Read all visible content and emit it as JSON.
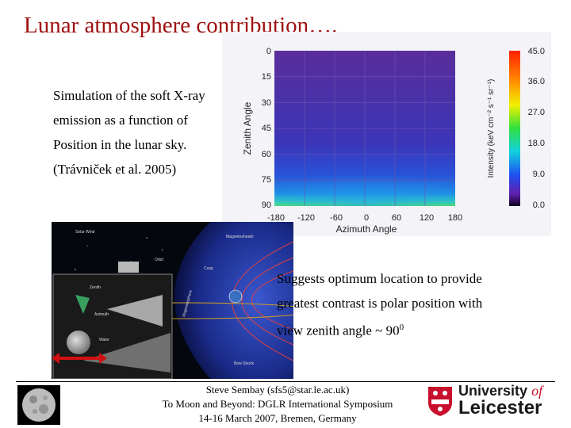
{
  "slide": {
    "title": "Lunar atmosphere contribution….",
    "left_text": [
      "Simulation of the soft X-ray",
      "emission as a function of",
      "Position in the lunar sky.",
      "(Trávniček et al. 2005)"
    ],
    "right_text": [
      "Suggests optimum location to provide",
      "greatest contrast is polar position with",
      "view zenith angle ~ 90"
    ],
    "right_text_superscript": "0"
  },
  "heatmap": {
    "ylabel": "Zenith Angle",
    "xlabel": "Azimuth Angle",
    "yticks": [
      "0",
      "15",
      "30",
      "45",
      "60",
      "75",
      "90"
    ],
    "xticks": [
      "-180",
      "-120",
      "-60",
      "0",
      "60",
      "120",
      "180"
    ],
    "colorbar_label": "Intensity (keV cm⁻² s⁻¹ sr⁻¹)",
    "colorbar_ticks": [
      "45.0",
      "36.0",
      "27.0",
      "18.0",
      "9.0",
      "0.0"
    ]
  },
  "diagram": {
    "labels": [
      "Solar Wind",
      "Magnetosheath",
      "Orbit",
      "Cusp",
      "Magnetosphere",
      "Zenith",
      "Azimuth",
      "Wake",
      "Bow Shock"
    ]
  },
  "footer": {
    "credit": [
      "Steve Sembay (sfs5@star.le.ac.uk)",
      "To Moon and Beyond: DGLR International Symposium",
      "14-16 March 2007, Bremen, Germany"
    ],
    "logo_text": [
      "University",
      "of",
      "Leicester"
    ]
  },
  "colors": {
    "title": "#a01010",
    "accent_arrow": "#d01010",
    "logo_red": "#c8102e"
  }
}
